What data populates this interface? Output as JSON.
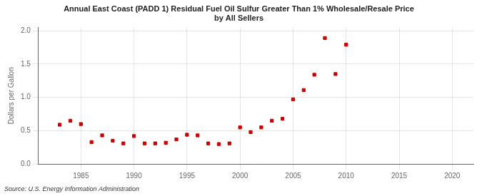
{
  "chart_data": {
    "type": "scatter",
    "title": "Annual East Coast (PADD 1) Residual Fuel Oil Sulfur Greater Than 1% Wholesale/Resale Price\nby All Sellers",
    "ylabel": "Dollars per Gallon",
    "annotations": [
      "Source: U.S. Energy Information Administration"
    ],
    "x": [
      1983,
      1984,
      1985,
      1986,
      1987,
      1988,
      1989,
      1990,
      1991,
      1992,
      1993,
      1994,
      1995,
      1996,
      1997,
      1998,
      1999,
      2000,
      2001,
      2002,
      2003,
      2004,
      2005,
      2006,
      2007,
      2008,
      2009,
      2010
    ],
    "values": [
      0.59,
      0.65,
      0.6,
      0.33,
      0.43,
      0.35,
      0.31,
      0.42,
      0.31,
      0.31,
      0.32,
      0.37,
      0.44,
      0.43,
      0.31,
      0.3,
      0.31,
      0.55,
      0.48,
      0.55,
      0.65,
      0.68,
      0.97,
      1.11,
      1.34,
      1.89,
      1.35,
      1.79
    ],
    "color": "#cc0000",
    "marker": "square",
    "xlim": [
      1981,
      2022
    ],
    "xticks": [
      1985,
      1990,
      1995,
      2000,
      2005,
      2010,
      2015,
      2020
    ],
    "ylim": [
      0.0,
      2.05
    ],
    "yticks": [
      {
        "value": 0,
        "label": "0.0"
      },
      0.5,
      {
        "value": 1,
        "label": "1.0"
      },
      1.5,
      {
        "value": 2,
        "label": "2.0"
      }
    ],
    "grid": true
  }
}
